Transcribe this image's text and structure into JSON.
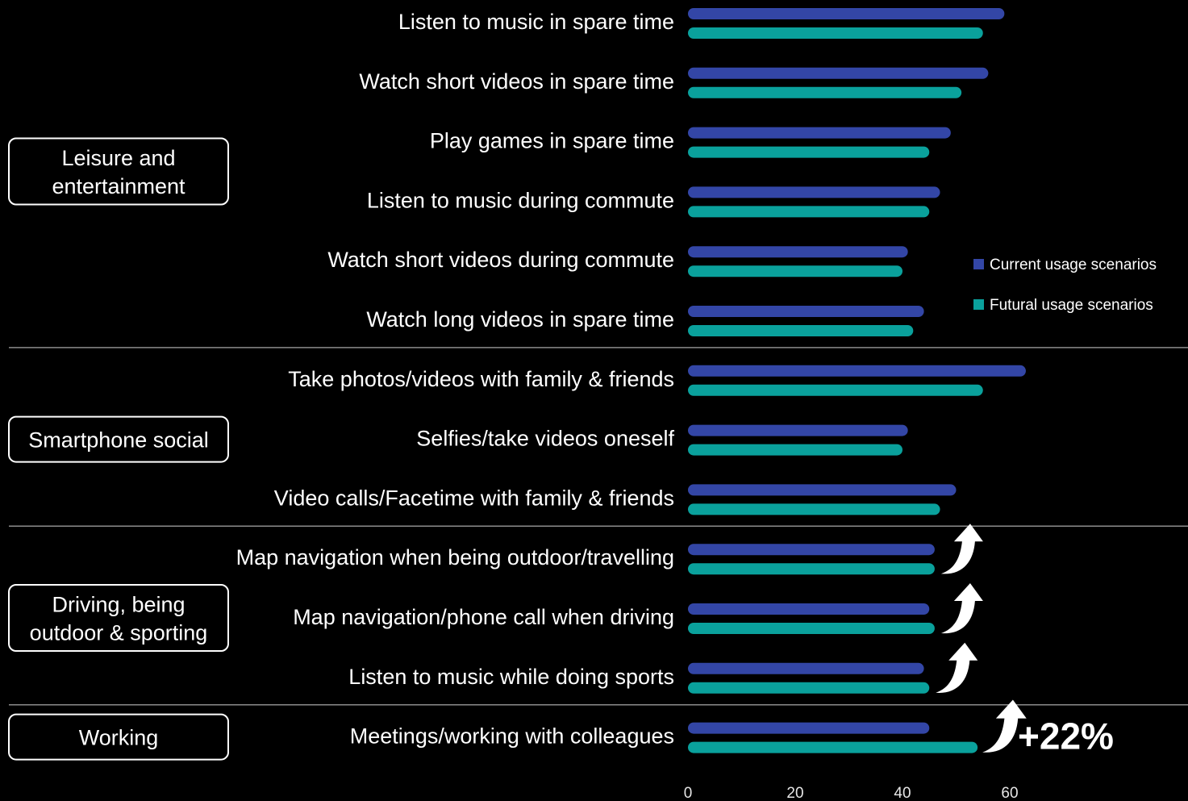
{
  "chart_data": {
    "type": "bar",
    "orientation": "horizontal",
    "categories": [
      "Listen to music in spare time",
      "Watch short videos in spare time",
      "Play games in spare time",
      "Listen to music during commute",
      "Watch short videos during commute",
      "Watch long videos in spare time",
      "Take photos/videos with family & friends",
      "Selfies/take videos oneself",
      "Video calls/Facetime with family & friends",
      "Map navigation when being outdoor/travelling",
      "Map navigation/phone call when driving",
      "Listen to music while doing sports",
      "Meetings/working with colleagues"
    ],
    "series": [
      {
        "name": "Current usage scenarios",
        "color": "#3346a6",
        "values": [
          59,
          56,
          49,
          47,
          41,
          44,
          63,
          41,
          50,
          46,
          45,
          44,
          45
        ]
      },
      {
        "name": "Futural usage scenarios",
        "color": "#0aa19c",
        "values": [
          55,
          51,
          45,
          45,
          40,
          42,
          55,
          40,
          47,
          46,
          46,
          45,
          54
        ]
      }
    ],
    "groups": [
      {
        "label": "Leisure and entertainment",
        "start": 0,
        "end": 5
      },
      {
        "label": "Smartphone social",
        "start": 6,
        "end": 8
      },
      {
        "label": "Driving, being outdoor & sporting",
        "start": 9,
        "end": 11
      },
      {
        "label": "Working",
        "start": 12,
        "end": 12
      }
    ],
    "xticks": [
      0,
      20,
      40,
      60
    ],
    "xlim": [
      0,
      60
    ],
    "legend_position": "right",
    "arrow_rows": [
      9,
      10,
      11,
      12
    ],
    "callout": {
      "row": 12,
      "text": "+22%"
    }
  }
}
